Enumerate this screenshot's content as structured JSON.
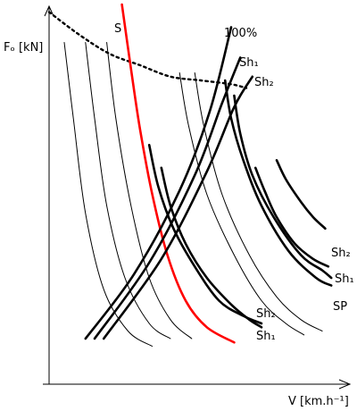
{
  "chart_data": {
    "type": "line",
    "title": "",
    "xlabel": "V [km.h⁻¹]",
    "ylabel": "Fₒ [kN]",
    "x_ticks": [],
    "y_ticks": [],
    "grid": false,
    "legend": "none",
    "xlim": [
      0,
      100
    ],
    "ylim": [
      0,
      100
    ],
    "curve_labels": {
      "s": "S",
      "full": "100%",
      "sh1_top": "Sh₁",
      "sh2_top": "Sh₂",
      "sh2_right": "Sh₂",
      "sh1_right": "Sh₁",
      "sp": "SP",
      "sh2_low": "Sh₂",
      "sh1_low": "Sh₁"
    },
    "series": [
      {
        "name": "",
        "style": "dotted",
        "color": "#000000",
        "points": [
          [
            0,
            98
          ],
          [
            10,
            92
          ],
          [
            20,
            87
          ],
          [
            30,
            84
          ],
          [
            40,
            81
          ],
          [
            50,
            80
          ],
          [
            60,
            79
          ],
          [
            65,
            78
          ]
        ]
      },
      {
        "name": "",
        "style": "thin",
        "color": "#000000",
        "points": [
          [
            5,
            90
          ],
          [
            8,
            70
          ],
          [
            12,
            45
          ],
          [
            18,
            25
          ],
          [
            26,
            14
          ],
          [
            34,
            10
          ]
        ]
      },
      {
        "name": "",
        "style": "thin",
        "color": "#000000",
        "points": [
          [
            12,
            90
          ],
          [
            15,
            70
          ],
          [
            19,
            47
          ],
          [
            25,
            28
          ],
          [
            33,
            16
          ],
          [
            40,
            12
          ]
        ]
      },
      {
        "name": "",
        "style": "thin",
        "color": "#000000",
        "points": [
          [
            19,
            90
          ],
          [
            22,
            70
          ],
          [
            27,
            47
          ],
          [
            33,
            28
          ],
          [
            40,
            17
          ],
          [
            47,
            12
          ]
        ]
      },
      {
        "name": "",
        "style": "thin",
        "color": "#000000",
        "points": [
          [
            43,
            82
          ],
          [
            46,
            68
          ],
          [
            52,
            50
          ],
          [
            61,
            34
          ],
          [
            70,
            22
          ],
          [
            78,
            16
          ],
          [
            84,
            13
          ]
        ]
      },
      {
        "name": "",
        "style": "thin",
        "color": "#000000",
        "points": [
          [
            48,
            82
          ],
          [
            51,
            68
          ],
          [
            57,
            50
          ],
          [
            66,
            34
          ],
          [
            75,
            23
          ],
          [
            83,
            17
          ],
          [
            90,
            14
          ]
        ]
      },
      {
        "name": "S",
        "style": "red",
        "color": "#ff0000",
        "points": [
          [
            24,
            100
          ],
          [
            27,
            83
          ],
          [
            30,
            67
          ],
          [
            34,
            50
          ],
          [
            39,
            34
          ],
          [
            45,
            22
          ],
          [
            52,
            15
          ],
          [
            61,
            11
          ]
        ]
      },
      {
        "name": "100%",
        "style": "thick",
        "color": "#000000",
        "points": [
          [
            12,
            12
          ],
          [
            28,
            29
          ],
          [
            43,
            51
          ],
          [
            53,
            72
          ],
          [
            60,
            94
          ]
        ]
      },
      {
        "name": "Sh₁",
        "style": "thick",
        "color": "#000000",
        "points": [
          [
            15,
            12
          ],
          [
            33,
            32
          ],
          [
            48,
            55
          ],
          [
            57,
            74
          ],
          [
            63,
            86
          ]
        ]
      },
      {
        "name": "Sh₂",
        "style": "thick",
        "color": "#000000",
        "points": [
          [
            18,
            12
          ],
          [
            37,
            33
          ],
          [
            52,
            56
          ],
          [
            61,
            73
          ],
          [
            67,
            81
          ]
        ]
      },
      {
        "name": "",
        "style": "thick",
        "color": "#000000",
        "points": [
          [
            58,
            80
          ],
          [
            60,
            70
          ],
          [
            64,
            59
          ],
          [
            70,
            47
          ],
          [
            79,
            35
          ],
          [
            88,
            28
          ],
          [
            93,
            26
          ]
        ]
      },
      {
        "name": "",
        "style": "thick",
        "color": "#000000",
        "points": [
          [
            61,
            76
          ],
          [
            63,
            66
          ],
          [
            67,
            55
          ],
          [
            74,
            44
          ],
          [
            83,
            34
          ],
          [
            90,
            30
          ],
          [
            93,
            28
          ]
        ]
      },
      {
        "name": "",
        "style": "thick",
        "color": "#000000",
        "points": [
          [
            33,
            63
          ],
          [
            36,
            52
          ],
          [
            41,
            41
          ],
          [
            48,
            31
          ],
          [
            56,
            22
          ],
          [
            64,
            18
          ],
          [
            70,
            16
          ]
        ]
      },
      {
        "name": "",
        "style": "thick",
        "color": "#000000",
        "points": [
          [
            37,
            57
          ],
          [
            40,
            47
          ],
          [
            45,
            37
          ],
          [
            52,
            28
          ],
          [
            60,
            21
          ],
          [
            66,
            17
          ],
          [
            70,
            15
          ]
        ]
      },
      {
        "name": "",
        "style": "thick",
        "color": "#000000",
        "points": [
          [
            68,
            57
          ],
          [
            71,
            51
          ],
          [
            75,
            44
          ],
          [
            81,
            37
          ],
          [
            87,
            33
          ],
          [
            92,
            31
          ]
        ]
      },
      {
        "name": "",
        "style": "thick",
        "color": "#000000",
        "points": [
          [
            75,
            59
          ],
          [
            78,
            54
          ],
          [
            83,
            48
          ],
          [
            87,
            44
          ],
          [
            91,
            41
          ]
        ]
      }
    ]
  }
}
